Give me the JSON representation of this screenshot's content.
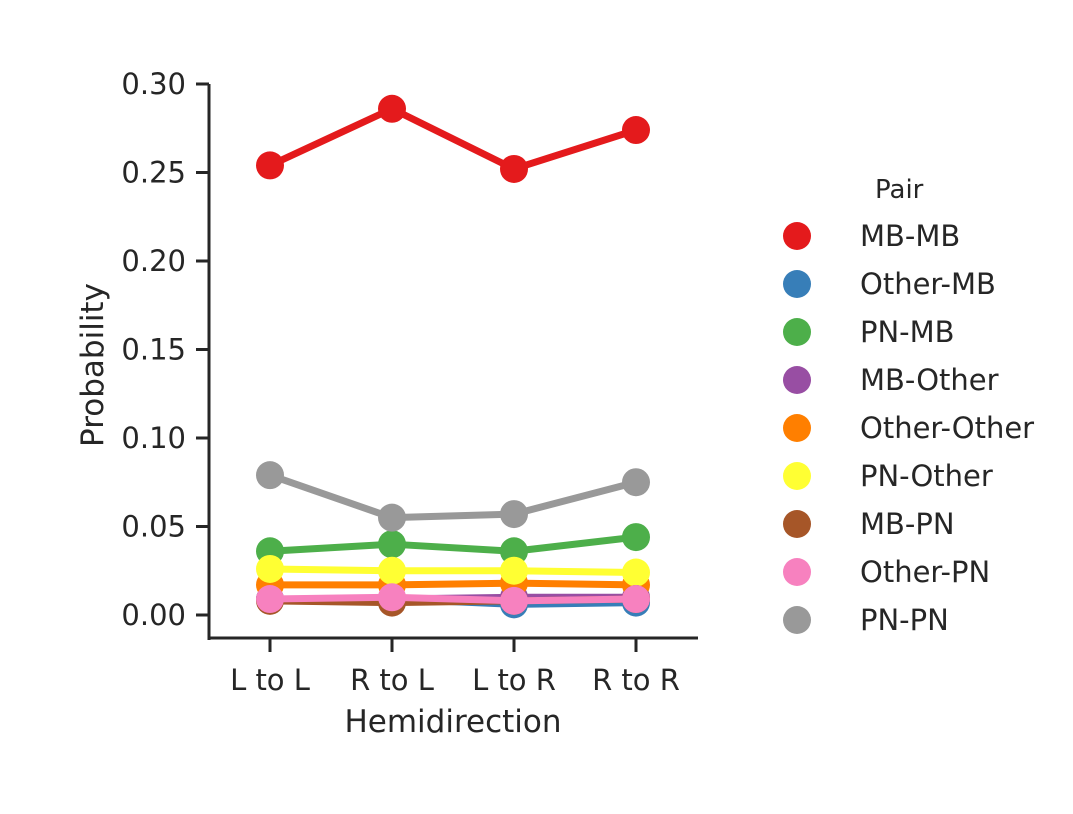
{
  "chart_data": {
    "type": "line",
    "xlabel": "Hemidirection",
    "ylabel": "Probability",
    "categories": [
      "L to L",
      "R to L",
      "L to R",
      "R to R"
    ],
    "ylim": [
      -0.013,
      0.3
    ],
    "yticks": [
      "0.00",
      "0.05",
      "0.10",
      "0.15",
      "0.20",
      "0.25",
      "0.30"
    ],
    "grid": false,
    "legend": {
      "title": "Pair",
      "placement": "right"
    },
    "series": [
      {
        "name": "MB-MB",
        "color": "#e41a1c",
        "values": [
          0.254,
          0.286,
          0.252,
          0.274
        ]
      },
      {
        "name": "Other-MB",
        "color": "#377eb8",
        "values": [
          0.009,
          0.009,
          0.006,
          0.007
        ]
      },
      {
        "name": "PN-MB",
        "color": "#4daf4a",
        "values": [
          0.036,
          0.04,
          0.036,
          0.044
        ]
      },
      {
        "name": "MB-Other",
        "color": "#984ea3",
        "values": [
          0.009,
          0.009,
          0.01,
          0.01
        ]
      },
      {
        "name": "Other-Other",
        "color": "#ff7f00",
        "values": [
          0.017,
          0.017,
          0.018,
          0.017
        ]
      },
      {
        "name": "PN-Other",
        "color": "#ffff33",
        "values": [
          0.026,
          0.025,
          0.025,
          0.024
        ]
      },
      {
        "name": "MB-PN",
        "color": "#a65628",
        "values": [
          0.008,
          0.007,
          0.008,
          0.009
        ]
      },
      {
        "name": "Other-PN",
        "color": "#f781bf",
        "values": [
          0.009,
          0.01,
          0.008,
          0.009
        ]
      },
      {
        "name": "PN-PN",
        "color": "#999999",
        "values": [
          0.079,
          0.055,
          0.057,
          0.075
        ]
      }
    ]
  }
}
